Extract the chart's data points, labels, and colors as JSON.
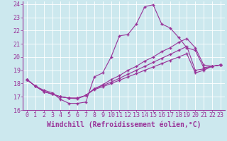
{
  "xlabel": "Windchill (Refroidissement éolien,°C)",
  "bg_color": "#cce8ee",
  "line_color": "#993399",
  "grid_color": "#ffffff",
  "xlim": [
    -0.5,
    23.5
  ],
  "ylim": [
    16,
    24.2
  ],
  "xticks": [
    0,
    1,
    2,
    3,
    4,
    5,
    6,
    7,
    8,
    9,
    10,
    11,
    12,
    13,
    14,
    15,
    16,
    17,
    18,
    19,
    20,
    21,
    22,
    23
  ],
  "yticks": [
    16,
    17,
    18,
    19,
    20,
    21,
    22,
    23,
    24
  ],
  "series": [
    [
      18.3,
      17.8,
      17.5,
      17.3,
      16.8,
      16.5,
      16.5,
      16.6,
      18.5,
      18.8,
      20.0,
      21.6,
      21.7,
      22.5,
      23.8,
      23.95,
      22.5,
      22.2,
      21.5,
      20.7,
      20.5,
      19.2,
      19.3,
      19.4
    ],
    [
      18.3,
      17.8,
      17.4,
      17.2,
      17.0,
      16.9,
      16.85,
      17.1,
      17.6,
      17.9,
      18.3,
      18.6,
      19.0,
      19.3,
      19.7,
      20.0,
      20.4,
      20.7,
      21.1,
      21.4,
      20.7,
      19.4,
      19.3,
      19.4
    ],
    [
      18.3,
      17.8,
      17.4,
      17.2,
      17.0,
      16.9,
      16.9,
      17.1,
      17.6,
      17.85,
      18.1,
      18.4,
      18.7,
      19.0,
      19.3,
      19.6,
      19.9,
      20.2,
      20.5,
      20.8,
      19.0,
      19.1,
      19.3,
      19.4
    ],
    [
      18.3,
      17.8,
      17.4,
      17.2,
      17.0,
      16.9,
      16.9,
      17.1,
      17.55,
      17.75,
      18.0,
      18.25,
      18.5,
      18.75,
      19.0,
      19.25,
      19.5,
      19.75,
      20.0,
      20.25,
      18.8,
      19.0,
      19.3,
      19.4
    ]
  ],
  "marker": "+",
  "markersize": 3.5,
  "linewidth": 0.8,
  "xlabel_fontsize": 7,
  "tick_fontsize": 6,
  "tick_color": "#993399",
  "label_color": "#993399",
  "spine_color": "#993399"
}
